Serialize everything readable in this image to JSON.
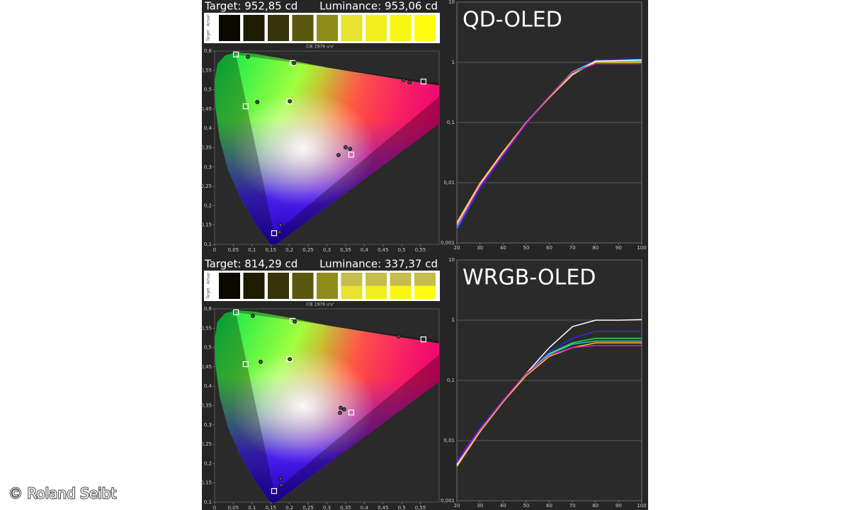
{
  "panels": [
    {
      "target_label": "Target: 952,85 cd",
      "luminance_label": "Luminance: 953,06 cd",
      "swatch_labels": {
        "actual": "Actual",
        "target": "Target"
      },
      "swatches": {
        "actual": [
          "#0b0900",
          "#1f1c04",
          "#36330a",
          "#5c5710",
          "#908c1c",
          "#e6e22e",
          "#f2ef20",
          "#faf614",
          "#fffc10"
        ],
        "target": [
          "#0b0900",
          "#1f1c04",
          "#36330a",
          "#5c5710",
          "#908c1c",
          "#e6e22e",
          "#f2ef20",
          "#faf614",
          "#fffc10"
        ]
      }
    },
    {
      "target_label": "Target: 814,29 cd",
      "luminance_label": "Luminance: 337,37 cd",
      "swatch_labels": {
        "actual": "Actual",
        "target": "Target"
      },
      "swatches": {
        "actual": [
          "#0b0900",
          "#1f1c04",
          "#36330a",
          "#5c5710",
          "#908c1c",
          "#c4bc4c",
          "#c4bc4c",
          "#c4bc4c",
          "#c4bc4c"
        ],
        "target": [
          "#0b0900",
          "#1f1c04",
          "#36330a",
          "#5c5710",
          "#908c1c",
          "#e6e22e",
          "#f2ef20",
          "#faf614",
          "#fffc10"
        ]
      }
    }
  ],
  "chart_data": [
    {
      "type": "scatter",
      "title": "CIE 1976 u'v'",
      "xlim": [
        0,
        0.6
      ],
      "ylim": [
        0.1,
        0.6
      ],
      "xticks": [
        0,
        {
          "value": 0.05,
          "label": "0,05"
        },
        {
          "value": 0.1,
          "label": "0,1"
        },
        {
          "value": 0.15,
          "label": "0,15"
        },
        {
          "value": 0.2,
          "label": "0,2"
        },
        {
          "value": 0.25,
          "label": "0,25"
        },
        {
          "value": 0.3,
          "label": "0,3"
        },
        {
          "value": 0.35,
          "label": "0,35"
        },
        {
          "value": 0.4,
          "label": "0,4"
        },
        {
          "value": 0.45,
          "label": "0,45"
        },
        {
          "value": 0.5,
          "label": "0,5"
        },
        {
          "value": 0.55,
          "label": "0,55"
        }
      ],
      "yticks": [
        {
          "value": 0.1,
          "label": "0,1"
        },
        {
          "value": 0.15,
          "label": "0,15"
        },
        {
          "value": 0.2,
          "label": "0,2"
        },
        {
          "value": 0.25,
          "label": "0,25"
        },
        {
          "value": 0.3,
          "label": "0,3"
        },
        {
          "value": 0.35,
          "label": "0,35"
        },
        {
          "value": 0.4,
          "label": "0,4"
        },
        {
          "value": 0.45,
          "label": "0,45"
        },
        {
          "value": 0.5,
          "label": "0,5"
        },
        {
          "value": 0.55,
          "label": "0,55"
        },
        {
          "value": 0.6,
          "label": "0,6"
        }
      ],
      "series": [
        {
          "color": "#ffffff",
          "marker": "square",
          "x": [
            0.057,
            0.208,
            0.558,
            0.083,
            0.199,
            0.365,
            0.159
          ],
          "values": [
            0.591,
            0.569,
            0.521,
            0.457,
            0.47,
            0.332,
            0.129
          ]
        },
        {
          "color": "#111111",
          "marker": "circle",
          "x": [
            0.089,
            0.212,
            0.505,
            0.521,
            0.114,
            0.201,
            0.35,
            0.362,
            0.331,
            0.176,
            0.174
          ],
          "values": [
            0.585,
            0.569,
            0.525,
            0.519,
            0.468,
            0.47,
            0.351,
            0.347,
            0.331,
            0.15,
            0.132
          ]
        }
      ]
    },
    {
      "type": "line",
      "title": "QD-OLED",
      "log_y": true,
      "grid": true,
      "x": [
        20,
        30,
        40,
        50,
        60,
        70,
        80,
        90,
        100
      ],
      "xlim": [
        20,
        100
      ],
      "ylim": [
        0.001,
        10
      ],
      "xticks": [
        20,
        30,
        40,
        50,
        60,
        70,
        80,
        90,
        100
      ],
      "yticks": [
        {
          "value": 0.001,
          "label": "0,001"
        },
        {
          "value": 0.01,
          "label": "0,01"
        },
        {
          "value": 0.1,
          "label": "0,1"
        },
        1,
        10
      ],
      "series": [
        {
          "color": "#2a2ae8",
          "values": [
            0.0016,
            0.008,
            0.028,
            0.095,
            0.27,
            0.68,
            1.1,
            1.12,
            1.15
          ]
        },
        {
          "color": "#2edc4a",
          "values": [
            0.0018,
            0.009,
            0.031,
            0.1,
            0.27,
            0.69,
            1.04,
            1.04,
            1.04
          ]
        },
        {
          "color": "#22d3e6",
          "values": [
            0.0018,
            0.009,
            0.031,
            0.1,
            0.27,
            0.7,
            1.05,
            1.05,
            1.05
          ]
        },
        {
          "color": "#ffffff",
          "values": [
            0.002,
            0.0095,
            0.032,
            0.1,
            0.26,
            0.62,
            1.05,
            1.07,
            1.1
          ]
        },
        {
          "color": "#ffc828",
          "values": [
            0.0022,
            0.0098,
            0.033,
            0.1,
            0.26,
            0.64,
            1.0,
            1.0,
            1.0
          ]
        },
        {
          "color": "#e020c0",
          "values": [
            0.0019,
            0.0088,
            0.03,
            0.098,
            0.27,
            0.68,
            0.95,
            0.95,
            0.95
          ]
        }
      ]
    },
    {
      "type": "scatter",
      "title": "CIE 1976 u'v'",
      "xlim": [
        0,
        0.6
      ],
      "ylim": [
        0.1,
        0.6
      ],
      "xticks": [
        0,
        {
          "value": 0.05,
          "label": "0,05"
        },
        {
          "value": 0.1,
          "label": "0,1"
        },
        {
          "value": 0.15,
          "label": "0,15"
        },
        {
          "value": 0.2,
          "label": "0,2"
        },
        {
          "value": 0.25,
          "label": "0,25"
        },
        {
          "value": 0.3,
          "label": "0,3"
        },
        {
          "value": 0.35,
          "label": "0,35"
        },
        {
          "value": 0.4,
          "label": "0,4"
        },
        {
          "value": 0.45,
          "label": "0,45"
        },
        {
          "value": 0.5,
          "label": "0,5"
        },
        {
          "value": 0.55,
          "label": "0,55"
        }
      ],
      "yticks": [
        {
          "value": 0.1,
          "label": "0,1"
        },
        {
          "value": 0.15,
          "label": "0,15"
        },
        {
          "value": 0.2,
          "label": "0,2"
        },
        {
          "value": 0.25,
          "label": "0,25"
        },
        {
          "value": 0.3,
          "label": "0,3"
        },
        {
          "value": 0.35,
          "label": "0,35"
        },
        {
          "value": 0.4,
          "label": "0,4"
        },
        {
          "value": 0.45,
          "label": "0,45"
        },
        {
          "value": 0.5,
          "label": "0,5"
        },
        {
          "value": 0.55,
          "label": "0,55"
        },
        {
          "value": 0.6,
          "label": "0,6"
        }
      ],
      "series": [
        {
          "color": "#ffffff",
          "marker": "square",
          "x": [
            0.057,
            0.208,
            0.558,
            0.083,
            0.199,
            0.365,
            0.159
          ],
          "values": [
            0.591,
            0.569,
            0.521,
            0.457,
            0.47,
            0.332,
            0.129
          ]
        },
        {
          "color": "#111111",
          "marker": "circle",
          "x": [
            0.102,
            0.214,
            0.492,
            0.123,
            0.201,
            0.337,
            0.346,
            0.335,
            0.176,
            0.178
          ],
          "values": [
            0.582,
            0.567,
            0.529,
            0.463,
            0.47,
            0.344,
            0.34,
            0.331,
            0.161,
            0.144
          ]
        }
      ]
    },
    {
      "type": "line",
      "title": "WRGB-OLED",
      "log_y": true,
      "grid": true,
      "x": [
        20,
        30,
        40,
        50,
        60,
        70,
        80,
        90,
        100
      ],
      "xlim": [
        20,
        100
      ],
      "ylim": [
        0.001,
        10
      ],
      "xticks": [
        20,
        30,
        40,
        50,
        60,
        70,
        80,
        90,
        100
      ],
      "yticks": [
        {
          "value": 0.001,
          "label": "0,001"
        },
        {
          "value": 0.01,
          "label": "0,01"
        },
        {
          "value": 0.1,
          "label": "0,1"
        },
        1,
        10
      ],
      "series": [
        {
          "color": "#2a2ae8",
          "values": [
            0.0045,
            0.016,
            0.047,
            0.13,
            0.3,
            0.5,
            0.65,
            0.65,
            0.65
          ]
        },
        {
          "color": "#2edc4a",
          "values": [
            0.004,
            0.015,
            0.045,
            0.13,
            0.28,
            0.42,
            0.5,
            0.5,
            0.5
          ]
        },
        {
          "color": "#22d3e6",
          "values": [
            0.0038,
            0.014,
            0.044,
            0.13,
            0.27,
            0.4,
            0.45,
            0.45,
            0.45
          ]
        },
        {
          "color": "#ffffff",
          "values": [
            0.004,
            0.015,
            0.045,
            0.13,
            0.35,
            0.78,
            1.0,
            1.0,
            1.02
          ]
        },
        {
          "color": "#ffc828",
          "values": [
            0.0037,
            0.014,
            0.044,
            0.12,
            0.25,
            0.35,
            0.42,
            0.42,
            0.42
          ]
        },
        {
          "color": "#e020c0",
          "values": [
            0.0042,
            0.015,
            0.046,
            0.13,
            0.26,
            0.35,
            0.38,
            0.38,
            0.38
          ]
        }
      ]
    }
  ],
  "credit": "© Roland Seibt"
}
